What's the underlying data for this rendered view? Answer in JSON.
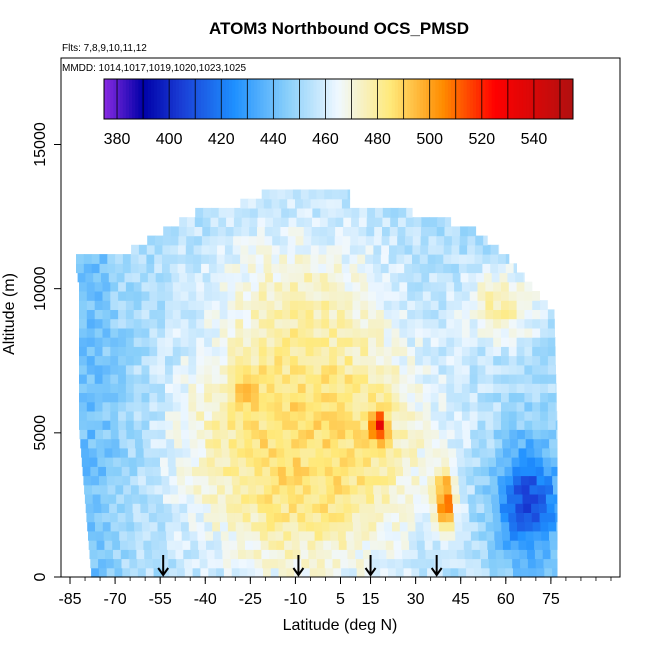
{
  "chart_data": {
    "type": "heatmap",
    "title": "ATOM3 Northbound OCS_PMSD",
    "subtitle_flights": "Flts: 7,8,9,10,11,12",
    "subtitle_dates": "MMDD: 1014,1017,1019,1020,1023,1025",
    "xlabel": "Latitude (deg N)",
    "ylabel": "Altitude (m)",
    "xlim": [
      -88,
      98
    ],
    "ylim": [
      0,
      18000
    ],
    "x_ticks": [
      "-85",
      "-70",
      "-55",
      "-40",
      "-25",
      "-10",
      "5",
      "15",
      "30",
      "45",
      "60",
      "75"
    ],
    "x_tick_values": [
      -85,
      -70,
      -55,
      -40,
      -25,
      -10,
      5,
      15,
      30,
      45,
      60,
      75
    ],
    "y_ticks": [
      "0",
      "5000",
      "10000",
      "15000"
    ],
    "y_tick_values": [
      0,
      5000,
      10000,
      15000
    ],
    "colorbar": {
      "labels": [
        "380",
        "400",
        "420",
        "440",
        "460",
        "480",
        "500",
        "520",
        "540"
      ],
      "values": [
        380,
        400,
        420,
        440,
        460,
        480,
        500,
        520,
        540
      ],
      "min": 375,
      "max": 555,
      "colors": [
        "#8a2be2",
        "#0000a8",
        "#1a3fd6",
        "#1e90ff",
        "#87cefa",
        "#f0f8ff",
        "#ffe97a",
        "#ff8c00",
        "#ff0000",
        "#b01010"
      ],
      "stops": [
        375,
        390,
        405,
        425,
        445,
        465,
        485,
        505,
        525,
        555
      ]
    },
    "data_extent": {
      "lat_min_by_alt_m": [
        [
          0,
          -78
        ],
        [
          5000,
          -82
        ],
        [
          10000,
          -82
        ],
        [
          10500,
          -83
        ]
      ],
      "lat_max_by_alt_m": [
        [
          0,
          77
        ],
        [
          5000,
          77
        ],
        [
          9000,
          76
        ],
        [
          11000,
          60
        ],
        [
          12000,
          48
        ],
        [
          13000,
          8
        ]
      ],
      "top_alt_m": 13400
    },
    "features": [
      {
        "name": "high-north-midtrop",
        "lat": [
          -32,
          -22
        ],
        "alt": [
          5500,
          7000
        ],
        "value": 502
      },
      {
        "name": "equatorial-plume",
        "lat": [
          -45,
          30
        ],
        "alt": [
          1000,
          8000
        ],
        "value": 486
      },
      {
        "name": "hotspot-15N",
        "lat": [
          14,
          19
        ],
        "alt": [
          4500,
          5700
        ],
        "value": 540
      },
      {
        "name": "hotspot-38N",
        "lat": [
          35,
          42
        ],
        "alt": [
          1500,
          3500
        ],
        "value": 520
      },
      {
        "name": "low-northern-boundary",
        "lat": [
          55,
          77
        ],
        "alt": [
          500,
          4500
        ],
        "value": 400
      },
      {
        "name": "southern-ocean",
        "lat": [
          -85,
          -60
        ],
        "alt": [
          0,
          11000
        ],
        "value": 448
      },
      {
        "name": "upper-trop-north",
        "lat": [
          45,
          70
        ],
        "alt": [
          8000,
          10500
        ],
        "value": 484
      }
    ],
    "markers": [
      {
        "lat": -54,
        "label": "arrow"
      },
      {
        "lat": -9,
        "label": "arrow"
      },
      {
        "lat": 15,
        "label": "arrow"
      },
      {
        "lat": 37,
        "label": "arrow"
      }
    ]
  }
}
